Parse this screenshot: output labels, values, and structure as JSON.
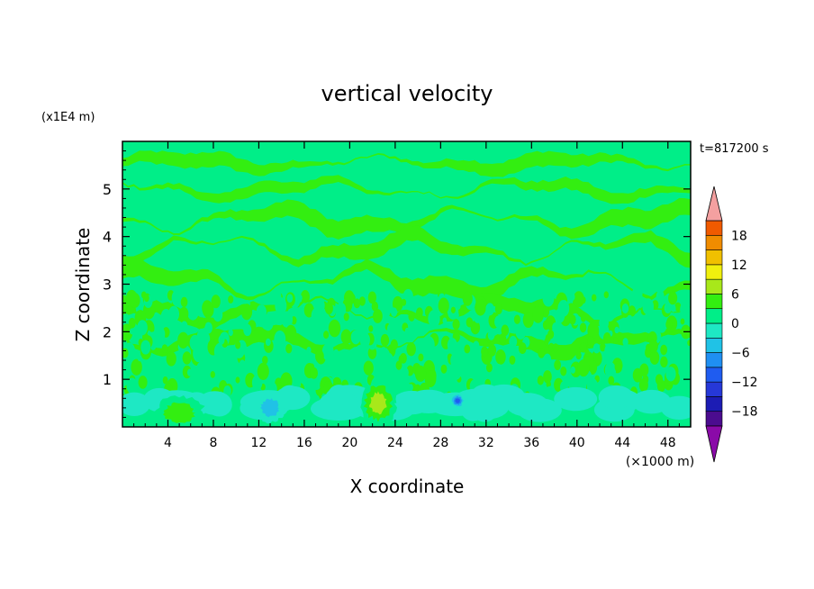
{
  "chart_data": {
    "type": "heatmap",
    "title": "vertical velocity",
    "xlabel": "X coordinate",
    "ylabel": "Z coordinate",
    "x_unit_label": "(×1000 m)",
    "y_unit_label": "(x1E4 m)",
    "time_label": "t=817200 s",
    "xlim": [
      0,
      50
    ],
    "ylim": [
      0,
      6
    ],
    "x_ticks": [
      4,
      8,
      12,
      16,
      20,
      24,
      28,
      32,
      36,
      40,
      44,
      48
    ],
    "x_tick_labels": [
      "4",
      "8",
      "12",
      "16",
      "20",
      "24",
      "28",
      "32",
      "36",
      "40",
      "44",
      "48"
    ],
    "y_ticks": [
      1,
      2,
      3,
      4,
      5
    ],
    "y_tick_labels": [
      "1",
      "2",
      "3",
      "4",
      "5"
    ],
    "colorbar": {
      "levels": [
        -21,
        -18,
        -15,
        -12,
        -9,
        -6,
        -3,
        0,
        3,
        6,
        9,
        12,
        15,
        18,
        21
      ],
      "colors": [
        "#4b0c8f",
        "#1c1cb4",
        "#2638d8",
        "#1f5cf0",
        "#1f8ff2",
        "#20c2e6",
        "#1ee8c4",
        "#00ee88",
        "#33ee11",
        "#a8e81a",
        "#f0f00e",
        "#f0c000",
        "#f08c00",
        "#f05a00",
        "#ee2020",
        "#e61c1c"
      ],
      "under_color": "#8a0aa8",
      "over_color": "#f4a0a0",
      "tick_values": [
        -18,
        -12,
        -6,
        0,
        6,
        12,
        18
      ],
      "tick_labels": [
        "−18",
        "−12",
        "−6",
        "0",
        "6",
        "12",
        "18"
      ]
    },
    "features": [
      {
        "x": 5,
        "z": 0.3,
        "w": 4.2,
        "h": 0.35,
        "value": 4
      },
      {
        "x": 22.5,
        "z": 0.5,
        "w": 3.2,
        "h": 0.5,
        "value": 8
      },
      {
        "x": 13,
        "z": 0.4,
        "w": 2.5,
        "h": 0.3,
        "value": -6
      },
      {
        "x": 29.5,
        "z": 0.55,
        "w": 1.2,
        "h": 0.15,
        "value": -10
      }
    ]
  }
}
